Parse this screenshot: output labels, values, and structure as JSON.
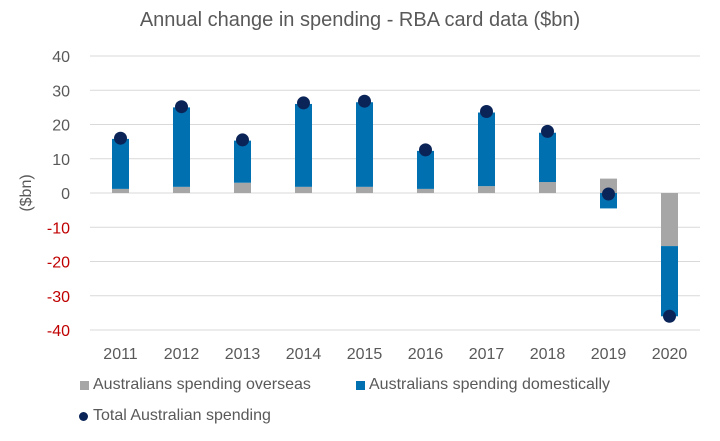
{
  "chart_data": {
    "type": "bar",
    "stacked": true,
    "title": "Annual change in spending - RBA card data ($bn)",
    "xlabel": "",
    "ylabel": "($bn)",
    "ylim": [
      -40,
      40
    ],
    "yticks": [
      40,
      30,
      20,
      10,
      0,
      -10,
      -20,
      -30,
      -40
    ],
    "grid": true,
    "legend_position": "bottom",
    "categories": [
      "2011",
      "2012",
      "2013",
      "2014",
      "2015",
      "2016",
      "2017",
      "2018",
      "2019",
      "2020"
    ],
    "series": [
      {
        "name": "Australians spending overseas",
        "kind": "bar",
        "color": "#a6a6a6",
        "values": [
          1.2,
          1.8,
          3.0,
          1.8,
          1.8,
          1.2,
          2.0,
          3.2,
          4.2,
          -15.5
        ]
      },
      {
        "name": "Australians spending domestically",
        "kind": "bar",
        "color": "#0070b0",
        "values": [
          14.6,
          23.2,
          12.3,
          24.2,
          24.7,
          11.1,
          21.5,
          14.4,
          -4.5,
          -20.5
        ]
      },
      {
        "name": "Total Australian spending",
        "kind": "marker",
        "color": "#0b2458",
        "values": [
          16.0,
          25.2,
          15.5,
          26.3,
          26.8,
          12.6,
          23.8,
          18.0,
          -0.3,
          -36.0
        ]
      }
    ],
    "negative_tick_color": "#c00000"
  }
}
